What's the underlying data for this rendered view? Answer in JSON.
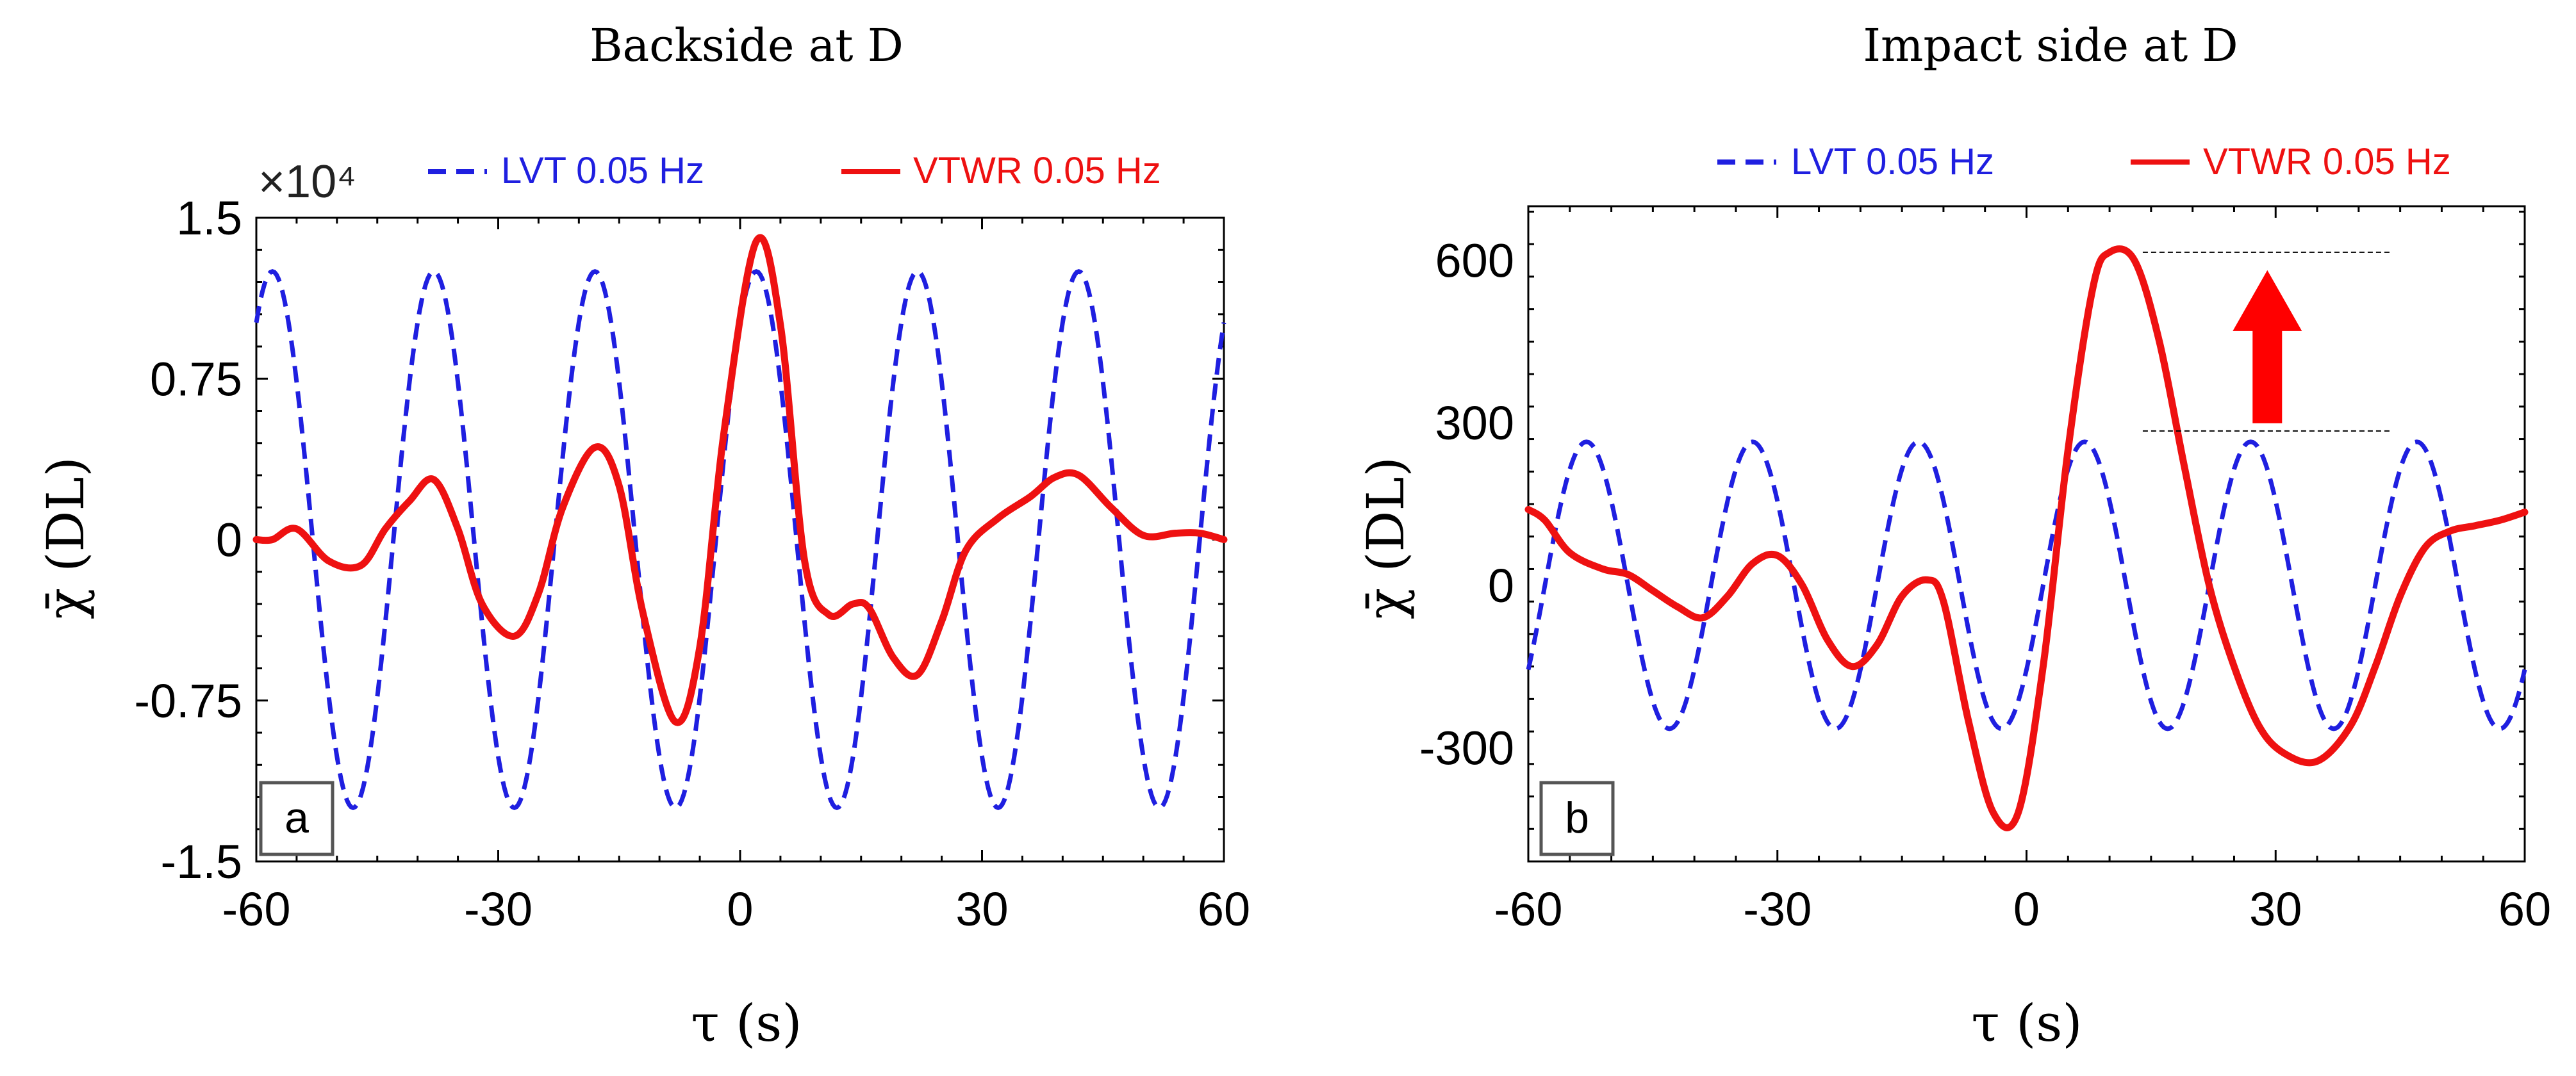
{
  "colors": {
    "lvt": "#1f1fe0",
    "vtwr": "#ee1111",
    "arrow": "#ff0000",
    "axis": "#000000"
  },
  "chart_data": [
    {
      "type": "line",
      "panel_label": "a",
      "title": "Backside at D",
      "xlabel": "τ (s)",
      "ylabel": "χ̄ (DL)",
      "exponent_label": "×10⁴",
      "xlim": [
        -60,
        60
      ],
      "ylim": [
        -15000,
        15000
      ],
      "xticks": [
        -60,
        -30,
        0,
        30,
        60
      ],
      "xtick_labels": [
        "-60",
        "-30",
        "0",
        "30",
        "60"
      ],
      "yticks": [
        -15000,
        -7500,
        0,
        7500,
        15000
      ],
      "ytick_labels": [
        "-1.5",
        "-0.75",
        "0",
        "0.75",
        "1.5"
      ],
      "legend_position": "top",
      "grid": false,
      "series": [
        {
          "name": "LVT 0.05 Hz",
          "style": "dashed",
          "amplitude": 12500,
          "period_s": 20,
          "phase_peak_s": 2
        },
        {
          "name": "VTWR 0.05 Hz",
          "style": "solid",
          "x": [
            -60,
            -58,
            -55,
            -51,
            -47,
            -44,
            -41,
            -38,
            -35,
            -32,
            -28,
            -25,
            -22,
            -18,
            -15,
            -12,
            -8,
            -5,
            -2,
            2,
            5,
            8,
            11,
            14,
            16,
            19,
            22,
            25,
            28,
            32,
            36,
            39,
            42,
            46,
            50,
            54,
            57,
            60
          ],
          "y": [
            0,
            0,
            500,
            -1000,
            -1200,
            500,
            1800,
            2800,
            500,
            -3000,
            -4500,
            -2500,
            1500,
            4300,
            2500,
            -3500,
            -8500,
            -5000,
            5000,
            13900,
            10000,
            -1000,
            -3500,
            -3000,
            -3200,
            -5500,
            -6300,
            -3800,
            -500,
            1000,
            2000,
            2900,
            3000,
            1500,
            200,
            300,
            300,
            0
          ]
        }
      ]
    },
    {
      "type": "line",
      "panel_label": "b",
      "title": "Impact side at D",
      "xlabel": "τ (s)",
      "ylabel": "χ̄ (DL)",
      "xlim": [
        -60,
        60
      ],
      "ylim": [
        -510,
        700
      ],
      "xticks": [
        -60,
        -30,
        0,
        30,
        60
      ],
      "xtick_labels": [
        "-60",
        "-30",
        "0",
        "30",
        "60"
      ],
      "yticks": [
        -300,
        0,
        300,
        600
      ],
      "ytick_labels": [
        "-300",
        "0",
        "300",
        "600"
      ],
      "legend_position": "top",
      "grid": false,
      "series": [
        {
          "name": "LVT 0.05 Hz",
          "style": "dashed",
          "amplitude": 265,
          "period_s": 20,
          "phase_peak_s": 7
        },
        {
          "name": "VTWR 0.05 Hz",
          "style": "solid",
          "x": [
            -60,
            -58,
            -55,
            -51,
            -48,
            -45,
            -42,
            -39,
            -36,
            -33,
            -30,
            -27,
            -24,
            -21,
            -18,
            -15,
            -12,
            -10,
            -7,
            -4,
            -1,
            2,
            5,
            8,
            10,
            13,
            16,
            19,
            22,
            25,
            28,
            31,
            35,
            39,
            42,
            45,
            48,
            51,
            54,
            57,
            60
          ],
          "y": [
            140,
            120,
            60,
            30,
            20,
            -10,
            -40,
            -60,
            -20,
            40,
            55,
            0,
            -100,
            -150,
            -110,
            -20,
            10,
            -30,
            -250,
            -420,
            -420,
            -150,
            250,
            550,
            615,
            600,
            450,
            220,
            0,
            -150,
            -260,
            -310,
            -325,
            -260,
            -150,
            -20,
            70,
            100,
            110,
            120,
            135
          ]
        }
      ],
      "annotation": {
        "type": "arrow",
        "direction": "up",
        "from_level": 285,
        "to_level": 615,
        "x_range": [
          14,
          44
        ]
      }
    }
  ]
}
